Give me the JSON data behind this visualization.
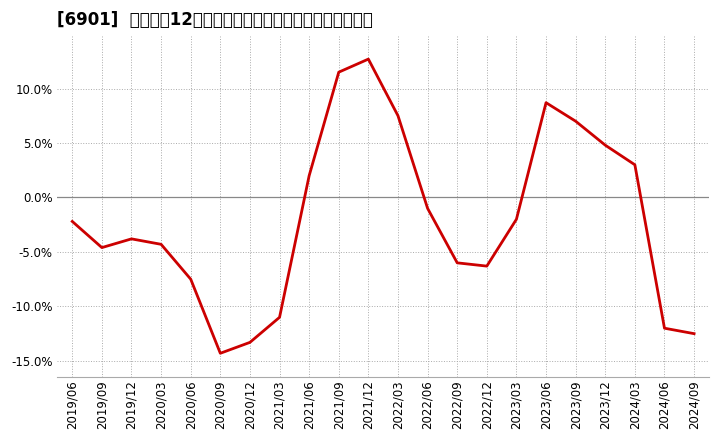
{
  "title": "[6901]  売上高の12か月移動合計の対前年同期増減率の推移",
  "x_labels": [
    "2019/06",
    "2019/09",
    "2019/12",
    "2020/03",
    "2020/06",
    "2020/09",
    "2020/12",
    "2021/03",
    "2021/06",
    "2021/09",
    "2021/12",
    "2022/03",
    "2022/06",
    "2022/09",
    "2022/12",
    "2023/03",
    "2023/06",
    "2023/09",
    "2023/12",
    "2024/03",
    "2024/06",
    "2024/09"
  ],
  "y_values": [
    -0.022,
    -0.046,
    -0.038,
    -0.043,
    -0.075,
    -0.143,
    -0.133,
    -0.11,
    0.02,
    0.115,
    0.127,
    0.075,
    -0.01,
    -0.06,
    -0.063,
    -0.02,
    0.087,
    0.07,
    0.048,
    0.03,
    -0.12,
    -0.125
  ],
  "line_color": "#cc0000",
  "line_width": 2.0,
  "background_color": "#ffffff",
  "grid_color": "#aaaaaa",
  "zero_line_color": "#888888",
  "ylim": [
    -0.165,
    0.148
  ],
  "yticks": [
    -0.15,
    -0.1,
    -0.05,
    0.0,
    0.05,
    0.1
  ],
  "title_fontsize": 12,
  "tick_fontsize": 8.5
}
